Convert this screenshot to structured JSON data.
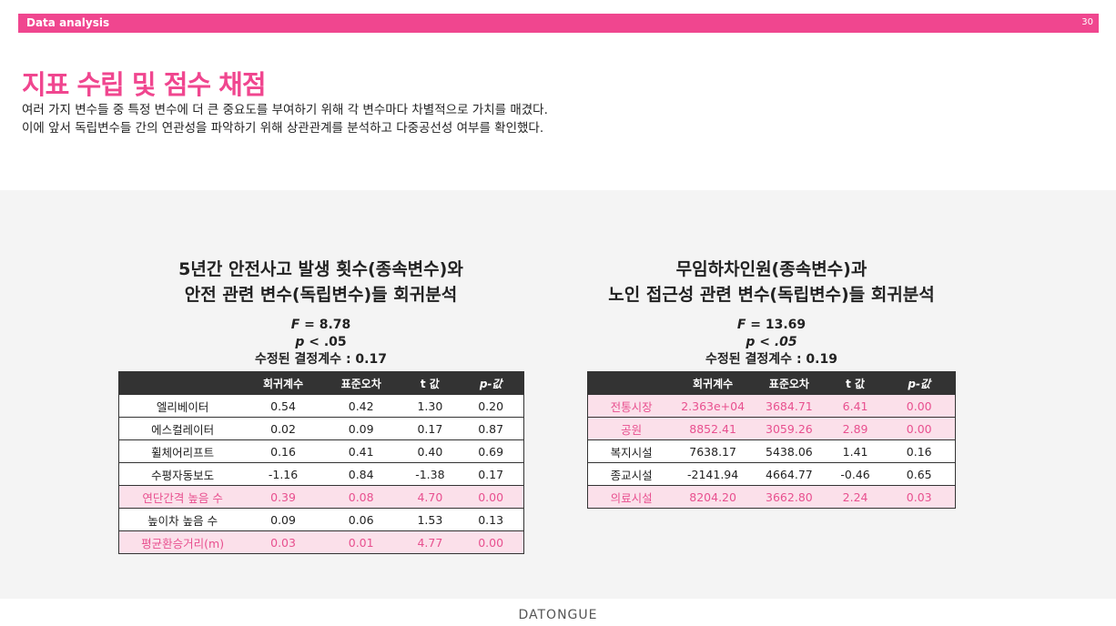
{
  "header": {
    "section": "Data analysis",
    "page": "30"
  },
  "title": "지표 수립 및 점수 채점",
  "desc": {
    "line1": "여러 가지 변수들 중 특정 변수에 더 큰 중요도를 부여하기 위해 각 변수마다 차별적으로 가치를 매겼다.",
    "line2": "이에 앞서 독립변수들 간의 연관성을 파악하기 위해 상관관계를 분석하고 다중공선성 여부를 확인했다."
  },
  "colors": {
    "accent": "#f0468f",
    "highlight_bg": "#fbe0ea"
  },
  "left": {
    "title1": "5년간 안전사고 발생 횟수(종속변수)와",
    "title2": "안전 관련 변수(독립변수)들 회귀분석",
    "f_label": "F",
    "f_value": "= 8.78",
    "p_label": "p",
    "p_value": "< .05",
    "r2": "수정된 결정계수 : 0.17",
    "headers": [
      "",
      "회귀계수",
      "표준오차",
      "t 값",
      "p-값"
    ],
    "rows": [
      {
        "hl": false,
        "cells": [
          "엘리베이터",
          "0.54",
          "0.42",
          "1.30",
          "0.20"
        ]
      },
      {
        "hl": false,
        "cells": [
          "에스컬레이터",
          "0.02",
          "0.09",
          "0.17",
          "0.87"
        ]
      },
      {
        "hl": false,
        "cells": [
          "휠체어리프트",
          "0.16",
          "0.41",
          "0.40",
          "0.69"
        ]
      },
      {
        "hl": false,
        "cells": [
          "수평자동보도",
          "-1.16",
          "0.84",
          "-1.38",
          "0.17"
        ]
      },
      {
        "hl": true,
        "cells": [
          "연단간격 높음 수",
          "0.39",
          "0.08",
          "4.70",
          "0.00"
        ]
      },
      {
        "hl": false,
        "cells": [
          "높이차 높음 수",
          "0.09",
          "0.06",
          "1.53",
          "0.13"
        ]
      },
      {
        "hl": true,
        "cells": [
          "평균환승거리(m)",
          "0.03",
          "0.01",
          "4.77",
          "0.00"
        ]
      }
    ]
  },
  "right": {
    "title1": "무임하차인원(종속변수)과",
    "title2": "노인 접근성 관련 변수(독립변수)들 회귀분석",
    "f_label": "F",
    "f_value": "= 13.69",
    "p_label": "p",
    "p_value": "< .05",
    "r2": "수정된 결정계수 : 0.19",
    "headers": [
      "",
      "회귀계수",
      "표준오차",
      "t 값",
      "p-값"
    ],
    "rows": [
      {
        "hl": true,
        "cells": [
          "전통시장",
          "2.363e+04",
          "3684.71",
          "6.41",
          "0.00"
        ]
      },
      {
        "hl": true,
        "cells": [
          "공원",
          "8852.41",
          "3059.26",
          "2.89",
          "0.00"
        ]
      },
      {
        "hl": false,
        "cells": [
          "복지시설",
          "7638.17",
          "5438.06",
          "1.41",
          "0.16"
        ]
      },
      {
        "hl": false,
        "cells": [
          "종교시설",
          "-2141.94",
          "4664.77",
          "-0.46",
          "0.65"
        ]
      },
      {
        "hl": true,
        "cells": [
          "의료시설",
          "8204.20",
          "3662.80",
          "2.24",
          "0.03"
        ]
      }
    ]
  },
  "footer": {
    "brand": "DATONGUE"
  }
}
